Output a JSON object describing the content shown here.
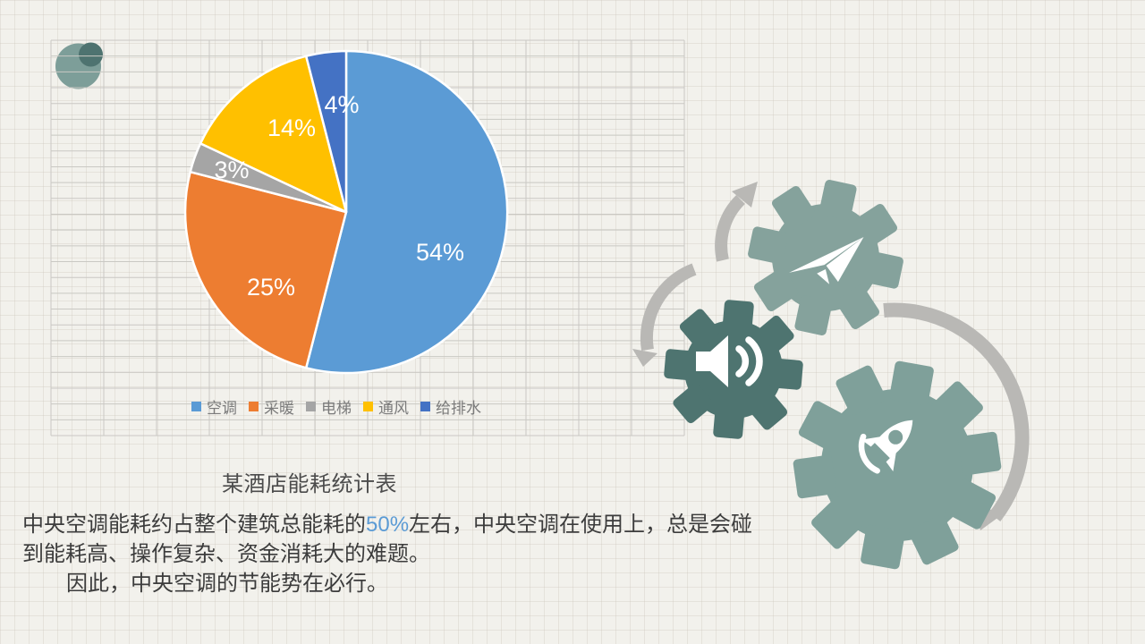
{
  "slide": {
    "background_color": "#f2f1ec",
    "title": "某酒店能耗统计表",
    "paragraph": {
      "line1_pre": "中央空调能耗约占整个建筑总能耗的",
      "line1_highlight": "50%",
      "line1_post": "左右，中央空调在使用上，总是会碰",
      "line2": "到能耗高、操作复杂、资金消耗大的难题。",
      "line3": "因此，中央空调的节能势在必行。",
      "highlight_color": "#5B9BD5"
    }
  },
  "chart_data": {
    "type": "pie",
    "title": "某酒店能耗统计表",
    "categories": [
      "空调",
      "采暖",
      "电梯",
      "通风",
      "给排水"
    ],
    "values": [
      54,
      25,
      3,
      14,
      4
    ],
    "unit": "%",
    "labels": [
      "54%",
      "25%",
      "3%",
      "14%",
      "4%"
    ],
    "colors": [
      "#5B9BD5",
      "#ED7D31",
      "#A5A5A5",
      "#FFC000",
      "#4472C4"
    ],
    "legend_position": "bottom",
    "start_angle_deg": 0,
    "direction": "clockwise",
    "label_color": "#ffffff",
    "grid_background": true
  },
  "decor": {
    "logo": "two-circles-logo",
    "gear_colors": [
      "#85A29C",
      "#4E7470",
      "#7FA09A"
    ],
    "gear_icons": [
      "paper-plane-icon",
      "speaker-icon",
      "rocket-icon"
    ],
    "arrow_color": "#b9b8b5",
    "logo_colors": [
      "#7D9E99",
      "#4E7370"
    ]
  }
}
